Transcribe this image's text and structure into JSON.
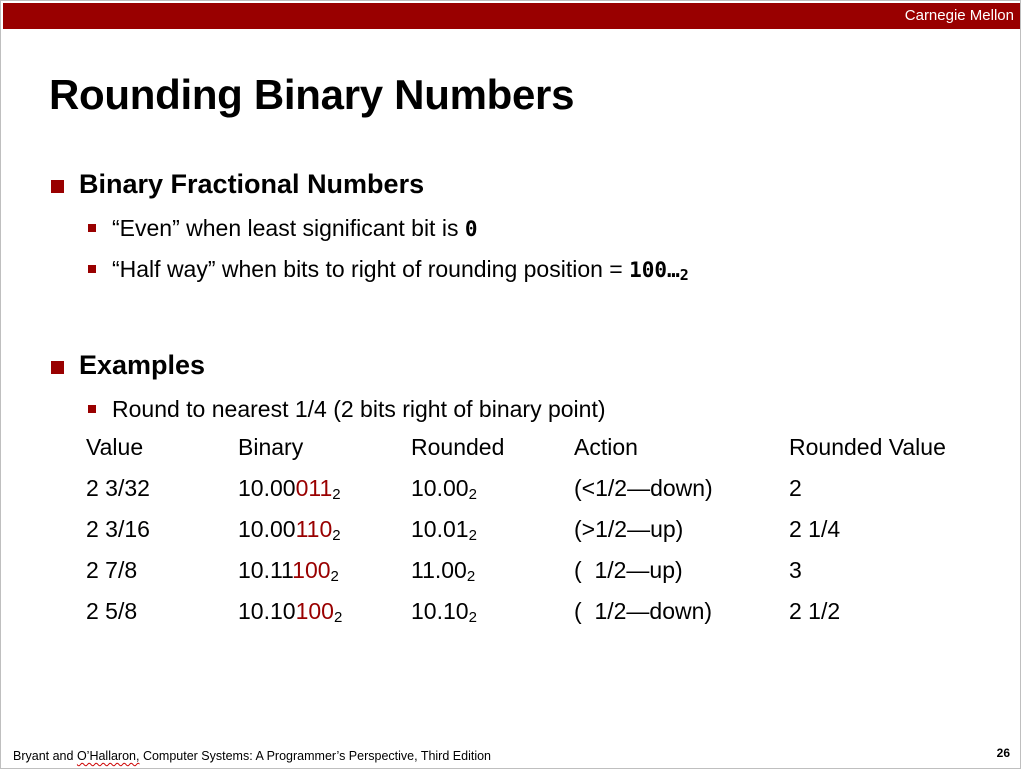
{
  "header": {
    "brand": "Carnegie Mellon"
  },
  "title": "Rounding Binary Numbers",
  "section1": {
    "heading": "Binary Fractional Numbers",
    "items": [
      {
        "text": "“Even” when least significant bit is ",
        "code": "0"
      },
      {
        "text": "“Half way” when bits to right of rounding position = ",
        "code": "100…",
        "sub": "2"
      }
    ]
  },
  "section2": {
    "heading": "Examples",
    "items": [
      {
        "text": "Round to nearest 1/4 (2 bits right of binary point)"
      }
    ]
  },
  "table": {
    "headers": [
      "Value",
      "Binary",
      "Rounded",
      "Action",
      "Rounded Value"
    ],
    "rows": [
      {
        "value": "2 3/32",
        "binary_black": "10.00",
        "binary_red": "011",
        "binary_sub": "2",
        "rounded": "10.00",
        "rounded_sub": "2",
        "action": "(<1/2—down)",
        "rounded_value": "2"
      },
      {
        "value": "2 3/16",
        "binary_black": "10.00",
        "binary_red": "110",
        "binary_sub": "2",
        "rounded": "10.01",
        "rounded_sub": "2",
        "action": "(>1/2—up)",
        "rounded_value": "2 1/4"
      },
      {
        "value": "2 7/8",
        "binary_black": "10.11",
        "binary_red": "100",
        "binary_sub": "2",
        "rounded": "11.00",
        "rounded_sub": "2",
        "action": "(  1/2—up)",
        "rounded_value": "3"
      },
      {
        "value": "2 5/8",
        "binary_black": "10.10",
        "binary_red": "100",
        "binary_sub": "2",
        "rounded": "10.10",
        "rounded_sub": "2",
        "action": "(  1/2—down)",
        "rounded_value": "2 1/2"
      }
    ]
  },
  "footer": {
    "citation_prefix": "Bryant and ",
    "citation_squiggle": "O’Hallaron,",
    "citation_suffix": " Computer Systems: A Programmer’s Perspective, Third Edition",
    "page_number": "26"
  },
  "colors": {
    "accent": "#990000",
    "background": "#ffffff",
    "text": "#000000"
  }
}
